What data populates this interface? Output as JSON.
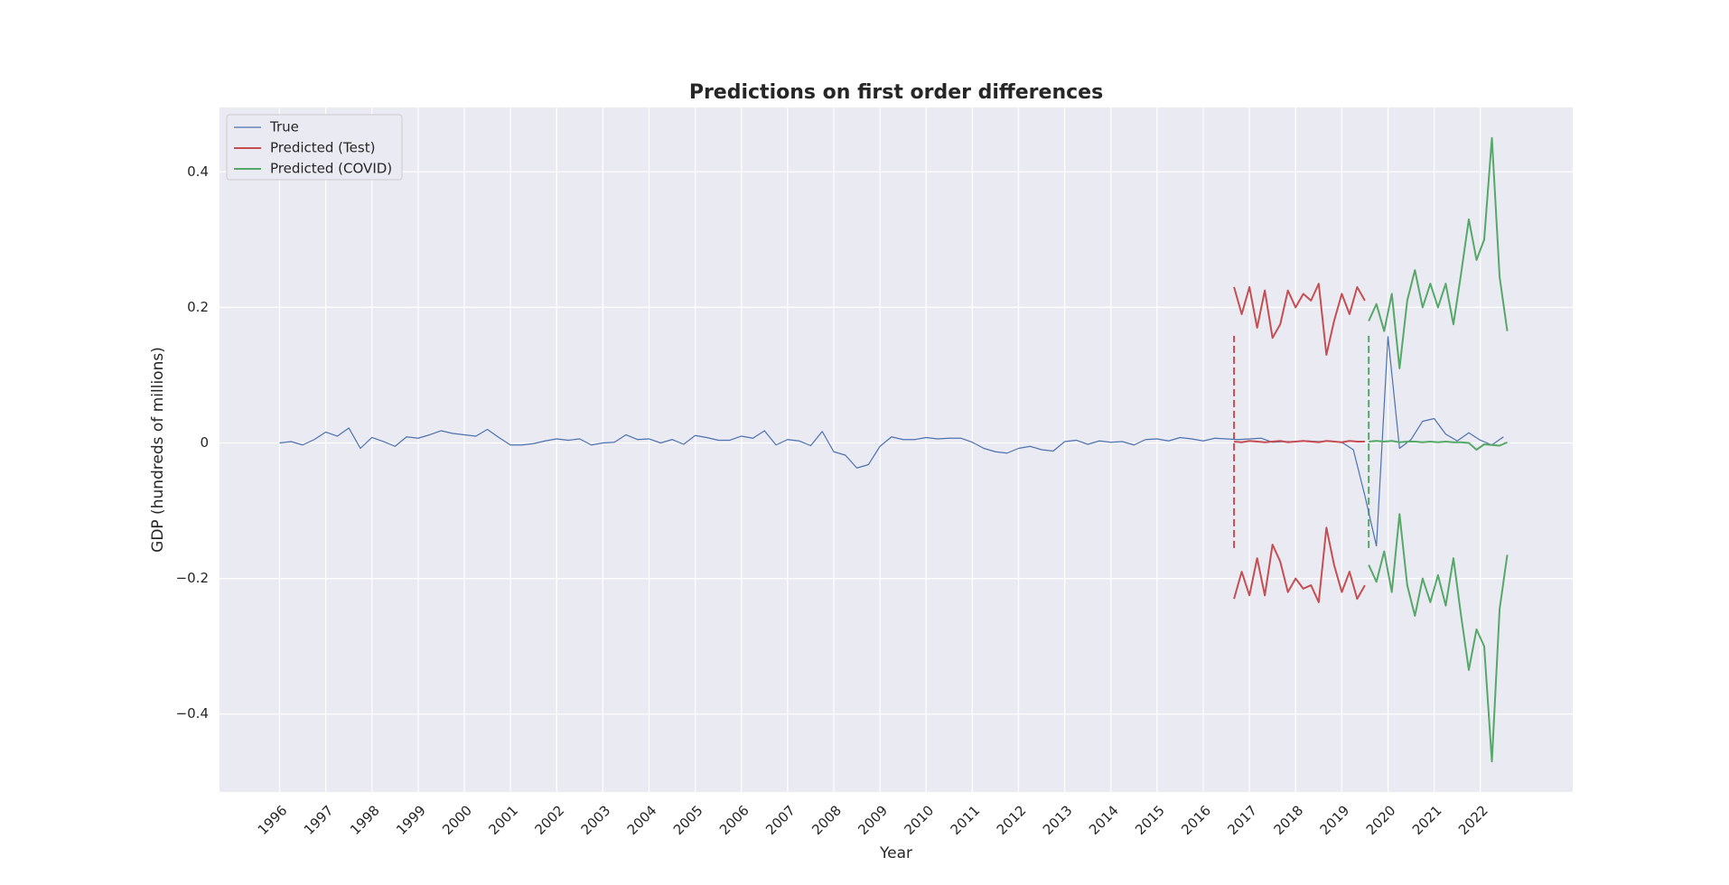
{
  "chart_data": {
    "type": "line",
    "title": "Predictions on first order differences",
    "x_label": "Year",
    "y_label": "GDP (hundreds of millions)",
    "xlim": [
      1994.7,
      2024.0
    ],
    "ylim": [
      -0.515,
      0.495
    ],
    "xticks": [
      1996,
      1997,
      1998,
      1999,
      2000,
      2001,
      2002,
      2003,
      2004,
      2005,
      2006,
      2007,
      2008,
      2009,
      2010,
      2011,
      2012,
      2013,
      2014,
      2015,
      2016,
      2017,
      2018,
      2019,
      2020,
      2021,
      2022
    ],
    "yticks": [
      {
        "value": -0.4,
        "label": "−0.4"
      },
      {
        "value": -0.2,
        "label": "−0.2"
      },
      0.0,
      0.2,
      0.4
    ],
    "grid": true,
    "legend": "upper left",
    "series": [
      {
        "name": "True",
        "color": "#4c72b0",
        "linewidth": 1.2,
        "x": [
          1996,
          1996.25,
          1996.5,
          1996.75,
          1997,
          1997.25,
          1997.5,
          1997.75,
          1998,
          1998.25,
          1998.5,
          1998.75,
          1999,
          1999.25,
          1999.5,
          1999.75,
          2000,
          2000.25,
          2000.5,
          2000.75,
          2001,
          2001.25,
          2001.5,
          2001.75,
          2002,
          2002.25,
          2002.5,
          2002.75,
          2003,
          2003.25,
          2003.5,
          2003.75,
          2004,
          2004.25,
          2004.5,
          2004.75,
          2005,
          2005.25,
          2005.5,
          2005.75,
          2006,
          2006.25,
          2006.5,
          2006.75,
          2007,
          2007.25,
          2007.5,
          2007.75,
          2008,
          2008.25,
          2008.5,
          2008.75,
          2009,
          2009.25,
          2009.5,
          2009.75,
          2010,
          2010.25,
          2010.5,
          2010.75,
          2011,
          2011.25,
          2011.5,
          2011.75,
          2012,
          2012.25,
          2012.5,
          2012.75,
          2013,
          2013.25,
          2013.5,
          2013.75,
          2014,
          2014.25,
          2014.5,
          2014.75,
          2015,
          2015.25,
          2015.5,
          2015.75,
          2016,
          2016.25,
          2016.5,
          2016.75,
          2017,
          2017.25,
          2017.5,
          2017.75,
          2018,
          2018.25,
          2018.5,
          2018.75,
          2019,
          2019.25,
          2019.5,
          2019.75,
          2020,
          2020.25,
          2020.5,
          2020.75,
          2021,
          2021.25,
          2021.5,
          2021.75,
          2022,
          2022.25,
          2022.5
        ],
        "values": [
          0,
          0.002,
          -0.003,
          0.005,
          0.016,
          0.01,
          0.022,
          -0.008,
          0.008,
          0.002,
          -0.005,
          0.009,
          0.007,
          0.012,
          0.018,
          0.014,
          0.012,
          0.01,
          0.02,
          0.008,
          -0.003,
          -0.003,
          -0.001,
          0.003,
          0.006,
          0.004,
          0.006,
          -0.003,
          0,
          0.001,
          0.012,
          0.005,
          0.006,
          0,
          0.005,
          -0.002,
          0.011,
          0.008,
          0.004,
          0.004,
          0.01,
          0.007,
          0.018,
          -0.003,
          0.005,
          0.003,
          -0.004,
          0.017,
          -0.013,
          -0.018,
          -0.037,
          -0.032,
          -0.005,
          0.009,
          0.005,
          0.005,
          0.008,
          0.006,
          0.007,
          0.007,
          0.001,
          -0.008,
          -0.013,
          -0.015,
          -0.008,
          -0.005,
          -0.01,
          -0.012,
          0.002,
          0.004,
          -0.002,
          0.003,
          0.001,
          0.002,
          -0.003,
          0.005,
          0.006,
          0.003,
          0.008,
          0.006,
          0.003,
          0.007,
          0.006,
          0.005,
          0.006,
          0.007,
          0.001,
          0.002,
          0.002,
          0.003,
          0.002,
          0.003,
          0.001,
          -0.01,
          -0.078,
          -0.152,
          0.157,
          -0.008,
          0.005,
          0.032,
          0.036,
          0.013,
          0.003,
          0.015,
          0.004,
          -0.003,
          0.009
        ]
      },
      {
        "name": "Predicted (Test)",
        "color": "#c44e52",
        "linewidth": 2,
        "x": [
          2016.667,
          2016.833,
          2017,
          2017.167,
          2017.333,
          2017.5,
          2017.667,
          2017.833,
          2018,
          2018.167,
          2018.333,
          2018.5,
          2018.667,
          2018.833,
          2019,
          2019.167,
          2019.333,
          2019.5
        ],
        "values": [
          0.002,
          0.001,
          0.003,
          0.002,
          0.001,
          0.002,
          0.003,
          0.001,
          0.002,
          0.003,
          0.002,
          0.001,
          0.003,
          0.002,
          0.001,
          0.003,
          0.002,
          0.002
        ],
        "upper": [
          0.23,
          0.19,
          0.23,
          0.17,
          0.225,
          0.155,
          0.175,
          0.225,
          0.2,
          0.22,
          0.21,
          0.235,
          0.13,
          0.18,
          0.22,
          0.19,
          0.23,
          0.21
        ],
        "lower": [
          -0.23,
          -0.19,
          -0.225,
          -0.17,
          -0.225,
          -0.15,
          -0.175,
          -0.22,
          -0.2,
          -0.215,
          -0.21,
          -0.235,
          -0.125,
          -0.18,
          -0.22,
          -0.19,
          -0.23,
          -0.21
        ]
      },
      {
        "name": "Predicted (COVID)",
        "color": "#55a868",
        "linewidth": 2,
        "x": [
          2019.583,
          2019.75,
          2019.917,
          2020.083,
          2020.25,
          2020.417,
          2020.583,
          2020.75,
          2020.917,
          2021.083,
          2021.25,
          2021.417,
          2021.583,
          2021.75,
          2021.917,
          2022.083,
          2022.25,
          2022.417,
          2022.583
        ],
        "values": [
          0.002,
          0.003,
          0.002,
          0.003,
          0.001,
          0.002,
          0.002,
          0.001,
          0.002,
          0.001,
          0.002,
          0.001,
          0.001,
          0,
          -0.01,
          -0.002,
          -0.003,
          -0.004,
          0.001
        ],
        "upper": [
          0.18,
          0.205,
          0.165,
          0.22,
          0.11,
          0.21,
          0.255,
          0.2,
          0.235,
          0.2,
          0.235,
          0.175,
          0.25,
          0.33,
          0.27,
          0.3,
          0.45,
          0.245,
          0.165
        ],
        "lower": [
          -0.18,
          -0.205,
          -0.16,
          -0.22,
          -0.105,
          -0.21,
          -0.255,
          -0.2,
          -0.235,
          -0.195,
          -0.24,
          -0.17,
          -0.255,
          -0.335,
          -0.275,
          -0.3,
          -0.47,
          -0.245,
          -0.165
        ]
      }
    ],
    "vlines": [
      {
        "x": 2016.667,
        "ymin": -0.155,
        "ymax": 0.158,
        "color": "#c44e52"
      },
      {
        "x": 2019.583,
        "ymin": -0.155,
        "ymax": 0.158,
        "color": "#55a868"
      }
    ]
  }
}
